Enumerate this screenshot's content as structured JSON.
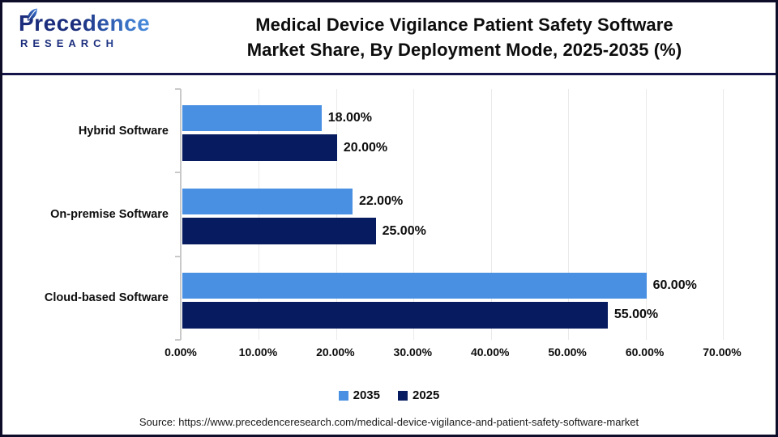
{
  "header": {
    "logo": {
      "name": "Precedence",
      "subtitle": "RESEARCH"
    },
    "title_line1": "Medical Device Vigilance Patient Safety Software",
    "title_line2": "Market Share, By Deployment Mode, 2025-2035 (%)"
  },
  "chart_data": {
    "type": "bar",
    "orientation": "horizontal",
    "title": "Medical Device Vigilance Patient Safety Software Market Share, By Deployment Mode, 2025-2035 (%)",
    "categories": [
      "Hybrid Software",
      "On-premise Software",
      "Cloud-based Software"
    ],
    "series": [
      {
        "name": "2035",
        "color": "#4a90e2",
        "values": [
          18,
          22,
          60
        ],
        "labels": [
          "18.00%",
          "22.00%",
          "60.00%"
        ]
      },
      {
        "name": "2025",
        "color": "#071b60",
        "values": [
          20,
          25,
          55
        ],
        "labels": [
          "20.00%",
          "25.00%",
          "55.00%"
        ]
      }
    ],
    "xlim": [
      0,
      70
    ],
    "x_tick_labels": [
      "0.00%",
      "10.00%",
      "20.00%",
      "30.00%",
      "40.00%",
      "50.00%",
      "60.00%",
      "70.00%"
    ],
    "grid": "vertical",
    "legend_position": "bottom-center"
  },
  "colors": {
    "bar_light": "#4a90e2",
    "bar_dark": "#071b60",
    "axis": "#c9c9c9",
    "gridline": "#eaeaea",
    "border": "#0d0d2a",
    "divider": "#15154a",
    "logo_navy": "#1b2d7c",
    "logo_blue": "#4e96e6"
  },
  "footer": {
    "source": "Source: https://www.precedenceresearch.com/medical-device-vigilance-and-patient-safety-software-market"
  }
}
